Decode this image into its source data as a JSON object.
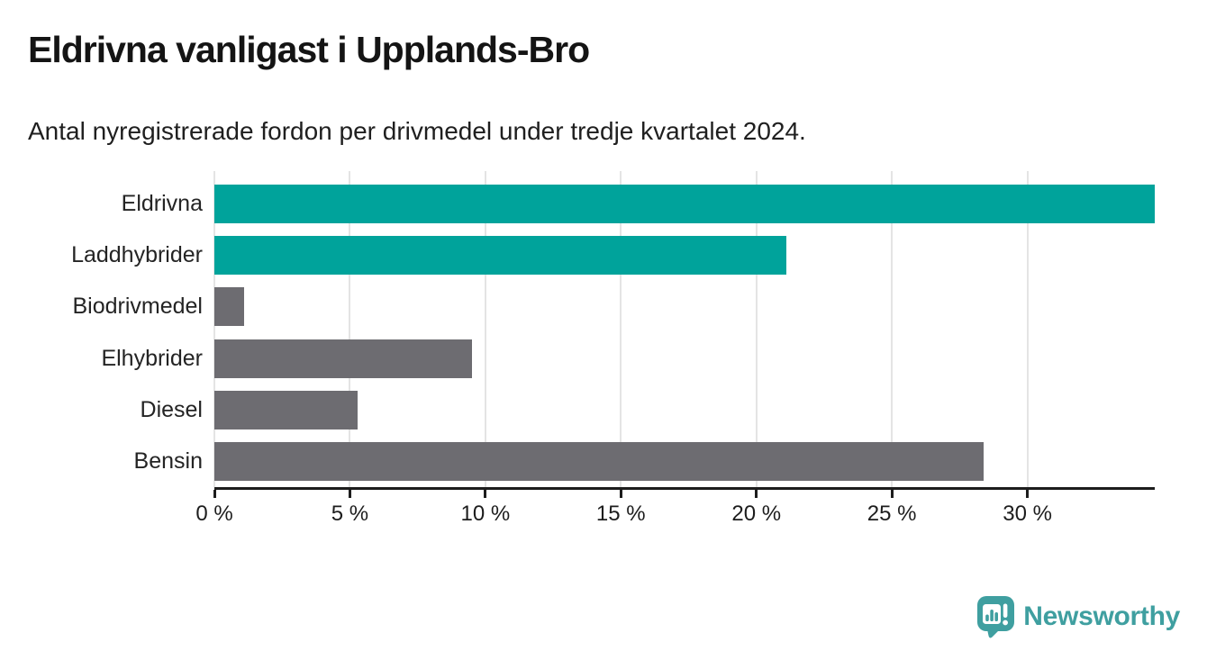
{
  "header": {
    "title": "Eldrivna vanligast i Upplands-Bro",
    "subtitle": "Antal nyregistrerade fordon per drivmedel under tredje kvartalet 2024."
  },
  "chart_data": {
    "type": "bar",
    "orientation": "horizontal",
    "title": "Eldrivna vanligast i Upplands-Bro",
    "subtitle": "Antal nyregistrerade fordon per drivmedel under tredje kvartalet 2024.",
    "xlabel": "",
    "ylabel": "",
    "unit": "%",
    "categories": [
      "Eldrivna",
      "Laddhybrider",
      "Biodrivmedel",
      "Elhybrider",
      "Diesel",
      "Bensin"
    ],
    "values": [
      34.7,
      21.1,
      1.1,
      9.5,
      5.3,
      28.4
    ],
    "bar_colors": [
      "#00a39b",
      "#00a39b",
      "#6d6c71",
      "#6d6c71",
      "#6d6c71",
      "#6d6c71"
    ],
    "highlight_color": "#00a39b",
    "default_color": "#6d6c71",
    "xlim": [
      0,
      34.7
    ],
    "x_ticks": {
      "values": [
        0,
        5,
        10,
        15,
        20,
        25,
        30
      ],
      "labels": [
        "0 %",
        "5 %",
        "10 %",
        "15 %",
        "20 %",
        "25 %",
        "30 %"
      ]
    },
    "grid": true,
    "grid_color": "#e4e4e4",
    "axis_color": "#1d1d1d",
    "legend": "none"
  },
  "branding": {
    "logo_text": "Newsworthy",
    "logo_color": "#3f9fa0",
    "logo_icon": "newsworthy-bubble-chart-icon"
  }
}
